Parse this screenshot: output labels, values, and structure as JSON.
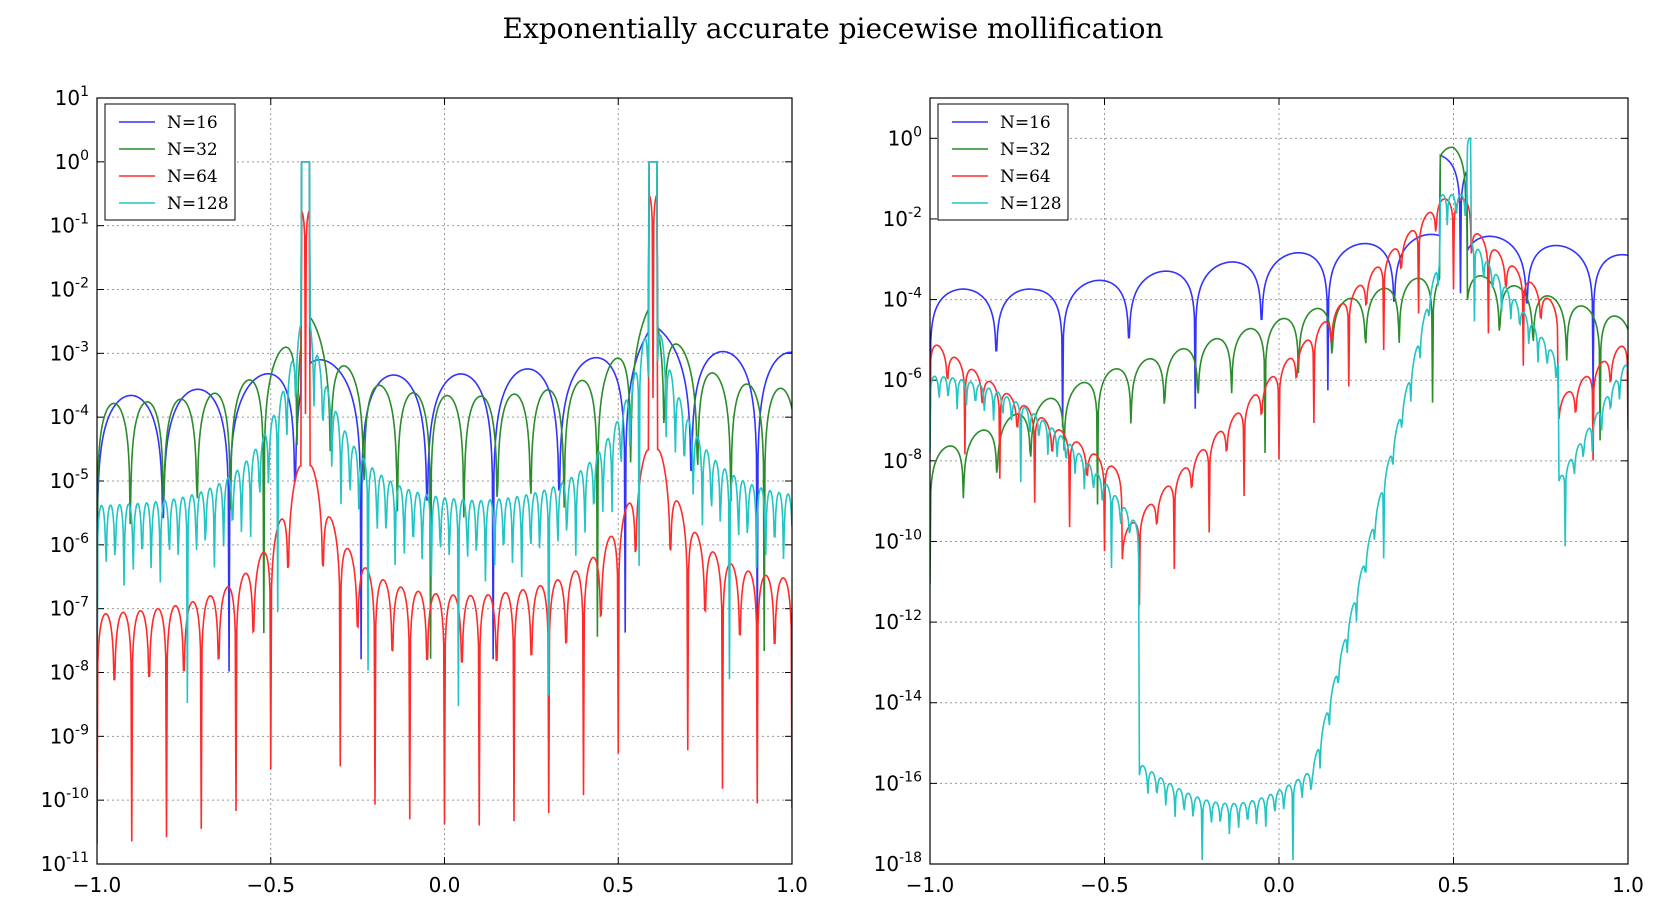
{
  "title": "Exponentially accurate piecewise mollification",
  "chart_data": [
    {
      "type": "line",
      "yscale": "log",
      "xlim": [
        -1.0,
        1.0
      ],
      "ylim_exp": [
        -11,
        1
      ],
      "xticks": [
        "−1.0",
        "−0.5",
        "0.0",
        "0.5",
        "1.0"
      ],
      "xtick_values": [
        -1.0,
        -0.5,
        0.0,
        0.5,
        1.0
      ],
      "ytick_exponents": [
        -11,
        -10,
        -9,
        -8,
        -7,
        -6,
        -5,
        -4,
        -3,
        -2,
        -1,
        0,
        1
      ],
      "grid": true,
      "legend": "top-left",
      "discontinuities": [
        -0.4,
        0.6
      ],
      "series": [
        {
          "name": "N=16",
          "color": "#3333ff",
          "base_start": -3.7,
          "base_slope": 0,
          "base_end": -3.0,
          "period": 0.19,
          "lobe": 2.5,
          "near_amp": 0.6
        },
        {
          "name": "N=32",
          "color": "#2a8c2a",
          "base_start": -3.8,
          "base_end": -3.6,
          "period": 0.096,
          "lobe": 2.3,
          "near_amp": 1.5
        },
        {
          "name": "N=64",
          "color": "#ff2b2b",
          "base_start": -7.1,
          "base_end": -6.6,
          "period": 0.05,
          "lobe": 2.0,
          "near_amp": 2.6
        },
        {
          "name": "N=128",
          "color": "#22c4c4",
          "base_start": -5.4,
          "base_end": -5.3,
          "period": 0.026,
          "lobe": 1.8,
          "near_amp": 3.2
        }
      ]
    },
    {
      "type": "line",
      "yscale": "log",
      "xlim": [
        -1.0,
        1.0
      ],
      "ylim_exp": [
        -18,
        1
      ],
      "xticks": [
        "−1.0",
        "−0.5",
        "0.0",
        "0.5",
        "1.0"
      ],
      "xtick_values": [
        -1.0,
        -0.5,
        0.0,
        0.5,
        1.0
      ],
      "ytick_exponents": [
        -18,
        -16,
        -14,
        -12,
        -10,
        -8,
        -6,
        -4,
        -2,
        0
      ],
      "grid": true,
      "legend": "top-left",
      "discontinuities": [
        0.5
      ],
      "series": [
        {
          "name": "N=16",
          "color": "#3333ff",
          "period": 0.19,
          "lobe": 2.2
        },
        {
          "name": "N=32",
          "color": "#2a8c2a",
          "period": 0.096,
          "lobe": 2.0
        },
        {
          "name": "N=64",
          "color": "#ff2b2b",
          "period": 0.05,
          "lobe": 1.4
        },
        {
          "name": "N=128",
          "color": "#22c4c4",
          "period": 0.026,
          "lobe": 1.2
        }
      ]
    }
  ]
}
